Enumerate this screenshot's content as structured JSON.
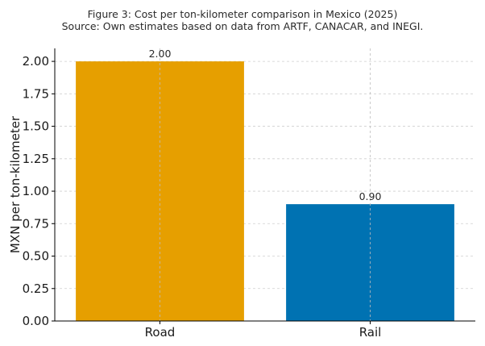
{
  "chart_data": {
    "type": "bar",
    "title": "Figure 3: Cost per ton-kilometer comparison in Mexico (2025)",
    "subtitle": "Source: Own estimates based on data from ARTF, CANACAR, and INEGI.",
    "xlabel": "",
    "ylabel": "MXN per ton-kilometer",
    "categories": [
      "Road",
      "Rail"
    ],
    "values": [
      2.0,
      0.9
    ],
    "value_labels": [
      "2.00",
      "0.90"
    ],
    "colors": [
      "#E69F00",
      "#0072B2"
    ],
    "ylim": [
      0,
      2.1
    ],
    "yticks": [
      0.0,
      0.25,
      0.5,
      0.75,
      1.0,
      1.25,
      1.5,
      1.75,
      2.0
    ],
    "ytick_labels": [
      "0.00",
      "0.25",
      "0.50",
      "0.75",
      "1.00",
      "1.25",
      "1.50",
      "1.75",
      "2.00"
    ],
    "grid": true,
    "grid_style": "dashed"
  }
}
